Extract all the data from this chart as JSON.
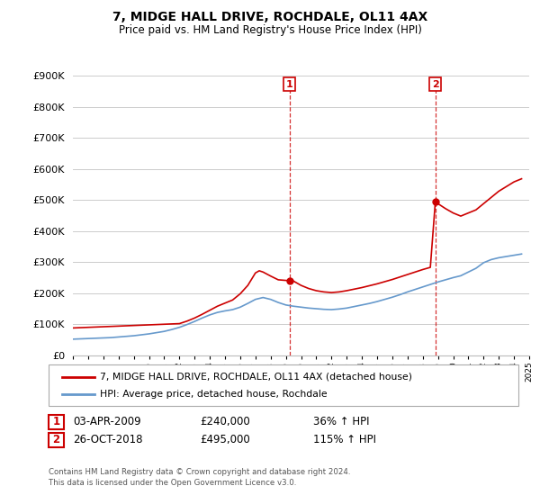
{
  "title": "7, MIDGE HALL DRIVE, ROCHDALE, OL11 4AX",
  "subtitle": "Price paid vs. HM Land Registry's House Price Index (HPI)",
  "property_label": "7, MIDGE HALL DRIVE, ROCHDALE, OL11 4AX (detached house)",
  "hpi_label": "HPI: Average price, detached house, Rochdale",
  "footer": "Contains HM Land Registry data © Crown copyright and database right 2024.\nThis data is licensed under the Open Government Licence v3.0.",
  "sale1": {
    "num": "1",
    "date": "03-APR-2009",
    "price": "£240,000",
    "hpi": "36% ↑ HPI",
    "year": 2009.25
  },
  "sale2": {
    "num": "2",
    "date": "26-OCT-2018",
    "price": "£495,000",
    "hpi": "115% ↑ HPI",
    "year": 2018.83
  },
  "sale1_price": 240000,
  "sale2_price": 495000,
  "property_color": "#cc0000",
  "hpi_color": "#6699cc",
  "ylim": [
    0,
    900000
  ],
  "yticks": [
    0,
    100000,
    200000,
    300000,
    400000,
    500000,
    600000,
    700000,
    800000,
    900000
  ],
  "xmin": 1995,
  "xmax": 2025,
  "background_color": "#ffffff",
  "grid_color": "#cccccc",
  "property_years": [
    1995.0,
    1995.5,
    1996.0,
    1996.5,
    1997.0,
    1997.5,
    1998.0,
    1998.5,
    1999.0,
    1999.5,
    2000.0,
    2000.5,
    2001.0,
    2001.5,
    2002.0,
    2002.5,
    2003.0,
    2003.5,
    2004.0,
    2004.5,
    2005.0,
    2005.5,
    2006.0,
    2006.5,
    2007.0,
    2007.25,
    2007.5,
    2008.0,
    2008.5,
    2009.0,
    2009.25,
    2009.5,
    2010.0,
    2010.5,
    2011.0,
    2011.5,
    2012.0,
    2012.5,
    2013.0,
    2013.5,
    2014.0,
    2014.5,
    2015.0,
    2015.5,
    2016.0,
    2016.5,
    2017.0,
    2017.5,
    2018.0,
    2018.5,
    2018.83,
    2019.0,
    2019.5,
    2020.0,
    2020.5,
    2021.0,
    2021.5,
    2022.0,
    2022.5,
    2023.0,
    2023.5,
    2024.0,
    2024.5
  ],
  "property_prices": [
    88000,
    89000,
    90000,
    91000,
    92000,
    93000,
    94000,
    95000,
    96000,
    97000,
    98000,
    99000,
    100000,
    101000,
    102000,
    110000,
    120000,
    132000,
    145000,
    158000,
    168000,
    178000,
    198000,
    225000,
    265000,
    272000,
    268000,
    255000,
    243000,
    241000,
    240000,
    239000,
    225000,
    215000,
    208000,
    204000,
    202000,
    204000,
    208000,
    213000,
    218000,
    224000,
    230000,
    237000,
    244000,
    252000,
    260000,
    268000,
    276000,
    283000,
    495000,
    488000,
    472000,
    458000,
    448000,
    458000,
    468000,
    488000,
    508000,
    528000,
    543000,
    558000,
    568000
  ],
  "hpi_years": [
    1995.0,
    1995.5,
    1996.0,
    1996.5,
    1997.0,
    1997.5,
    1998.0,
    1998.5,
    1999.0,
    1999.5,
    2000.0,
    2000.5,
    2001.0,
    2001.5,
    2002.0,
    2002.5,
    2003.0,
    2003.5,
    2004.0,
    2004.5,
    2005.0,
    2005.5,
    2006.0,
    2006.5,
    2007.0,
    2007.5,
    2008.0,
    2008.5,
    2009.0,
    2009.5,
    2010.0,
    2010.5,
    2011.0,
    2011.5,
    2012.0,
    2012.5,
    2013.0,
    2013.5,
    2014.0,
    2014.5,
    2015.0,
    2015.5,
    2016.0,
    2016.5,
    2017.0,
    2017.5,
    2018.0,
    2018.5,
    2019.0,
    2019.5,
    2020.0,
    2020.5,
    2021.0,
    2021.5,
    2022.0,
    2022.5,
    2023.0,
    2023.5,
    2024.0,
    2024.5
  ],
  "hpi_prices": [
    52000,
    53000,
    54000,
    55000,
    56000,
    57000,
    59000,
    61000,
    63000,
    66000,
    69000,
    73000,
    77000,
    83000,
    90000,
    99000,
    109000,
    120000,
    130000,
    138000,
    143000,
    147000,
    155000,
    167000,
    180000,
    186000,
    180000,
    170000,
    162000,
    158000,
    155000,
    152000,
    150000,
    148000,
    147000,
    149000,
    152000,
    157000,
    162000,
    167000,
    173000,
    180000,
    187000,
    195000,
    204000,
    212000,
    220000,
    228000,
    236000,
    243000,
    250000,
    256000,
    268000,
    280000,
    298000,
    308000,
    314000,
    318000,
    322000,
    326000
  ]
}
